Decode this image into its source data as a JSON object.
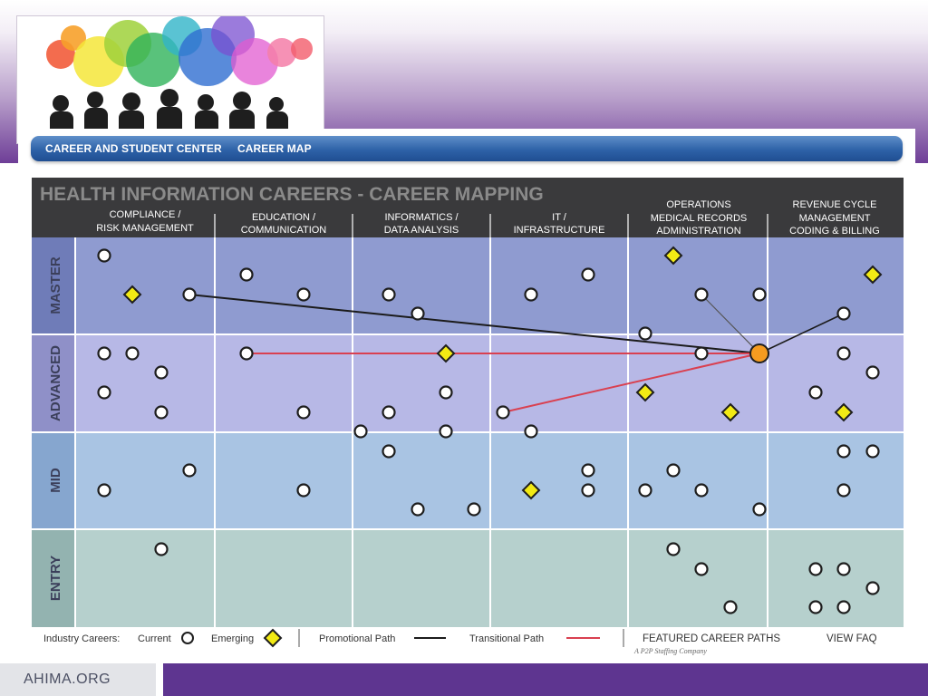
{
  "nav": {
    "links": [
      "CAREER AND STUDENT CENTER",
      "CAREER MAP"
    ]
  },
  "map": {
    "title": "HEALTH INFORMATION CAREERS - CAREER MAPPING",
    "columns": [
      [
        "COMPLIANCE /",
        "RISK MANAGEMENT"
      ],
      [
        "EDUCATION /",
        "COMMUNICATION"
      ],
      [
        "INFORMATICS /",
        "DATA ANALYSIS"
      ],
      [
        "IT /",
        "INFRASTRUCTURE"
      ],
      [
        "OPERATIONS",
        "MEDICAL RECORDS",
        "ADMINISTRATION"
      ],
      [
        "REVENUE CYCLE",
        "MANAGEMENT",
        "CODING & BILLING"
      ]
    ],
    "levels": [
      "MASTER",
      "ADVANCED",
      "MID",
      "ENTRY"
    ],
    "colors": {
      "header": "#3a3a3c",
      "master": "#8f9bd0",
      "advanced": "#b7b8e6",
      "mid": "#a9c4e3",
      "entry": "#b6d0cd",
      "emerging": "#f2ea14",
      "featured_node": "#f59b20",
      "promotional_path": "#1b1b1b",
      "transitional_path": "#d94050"
    }
  },
  "legend": {
    "industry_careers": "Industry Careers:",
    "current": "Current",
    "emerging": "Emerging",
    "promotional": "Promotional Path",
    "transitional": "Transitional Path",
    "featured": "FEATURED CAREER PATHS",
    "faq": "VIEW FAQ"
  },
  "tagline": "A P2P Staffing Company",
  "footer": {
    "site": "AHIMA.ORG"
  }
}
